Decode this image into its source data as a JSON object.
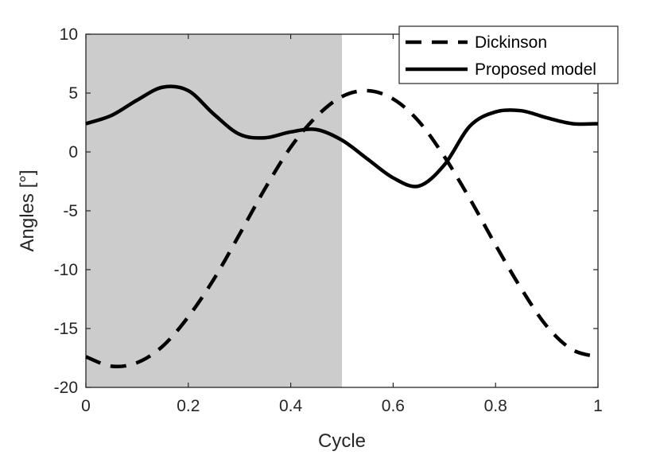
{
  "chart_data": {
    "type": "line",
    "title": "",
    "xlabel": "Cycle",
    "ylabel": "Angles [°]",
    "xlim": [
      0,
      1
    ],
    "ylim": [
      -20,
      10
    ],
    "xticks": [
      0,
      0.2,
      0.4,
      0.6,
      0.8,
      1
    ],
    "xtick_labels": [
      "0",
      "0.2",
      "0.4",
      "0.6",
      "0.8",
      "1"
    ],
    "yticks": [
      -20,
      -15,
      -10,
      -5,
      0,
      5,
      10
    ],
    "ytick_labels": [
      "-20",
      "-15",
      "-10",
      "-5",
      "0",
      "5",
      "10"
    ],
    "grid": false,
    "legend_position": "top-right",
    "shaded_region": {
      "x_start": 0,
      "x_end": 0.5,
      "color": "#cccccc"
    },
    "series": [
      {
        "name": "Dickinson",
        "style": "dashed",
        "color": "#000000",
        "x": [
          0,
          0.05,
          0.1,
          0.15,
          0.2,
          0.25,
          0.3,
          0.35,
          0.4,
          0.45,
          0.5,
          0.55,
          0.6,
          0.65,
          0.7,
          0.75,
          0.8,
          0.85,
          0.9,
          0.95,
          1.0
        ],
        "values": [
          -17.4,
          -18.2,
          -17.9,
          -16.5,
          -14.0,
          -10.8,
          -7.0,
          -3.1,
          0.4,
          3.0,
          4.7,
          5.2,
          4.5,
          2.6,
          -0.4,
          -4.0,
          -7.9,
          -11.6,
          -14.8,
          -16.8,
          -17.4
        ]
      },
      {
        "name": "Proposed model",
        "style": "solid",
        "color": "#000000",
        "x": [
          0,
          0.05,
          0.1,
          0.15,
          0.2,
          0.25,
          0.3,
          0.35,
          0.4,
          0.45,
          0.5,
          0.55,
          0.6,
          0.65,
          0.7,
          0.75,
          0.8,
          0.85,
          0.9,
          0.95,
          1.0
        ],
        "values": [
          2.4,
          3.1,
          4.4,
          5.5,
          5.2,
          3.2,
          1.5,
          1.2,
          1.7,
          1.9,
          1.0,
          -0.6,
          -2.2,
          -2.9,
          -1.1,
          2.2,
          3.4,
          3.5,
          2.9,
          2.4,
          2.4
        ]
      }
    ]
  }
}
